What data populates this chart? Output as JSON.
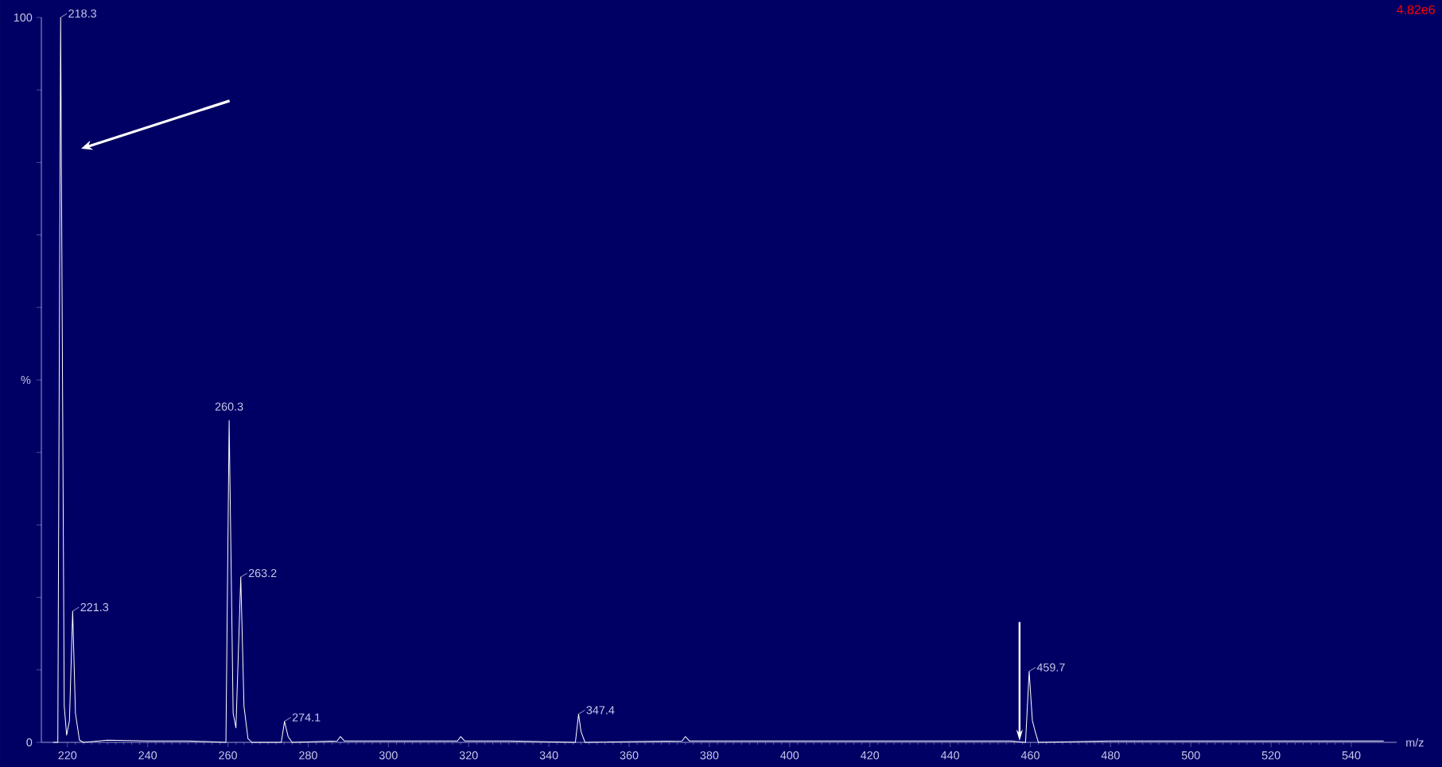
{
  "chart_data": {
    "type": "line",
    "ylabel": "%",
    "xlabel": "m/z",
    "xlim": [
      213.5,
      551.3
    ],
    "ylim": [
      0,
      100
    ],
    "xticks": [
      220,
      240,
      260,
      280,
      300,
      320,
      340,
      360,
      380,
      400,
      420,
      440,
      460,
      480,
      500,
      520,
      540
    ],
    "yticks": [
      0,
      {
        "value": 10,
        "label": null
      },
      {
        "value": 20,
        "label": null
      },
      {
        "value": 30,
        "label": null
      },
      {
        "value": 40,
        "label": null
      },
      {
        "value": 50,
        "label": null
      },
      {
        "value": 60,
        "label": null
      },
      {
        "value": 70,
        "label": null
      },
      {
        "value": 80,
        "label": null
      },
      {
        "value": 90,
        "label": null
      },
      100
    ],
    "series": [
      {
        "color": "#ffffff",
        "x": [
          216.5,
          217.6,
          218.3,
          219.2,
          219.8,
          220.5,
          221.3,
          222.0,
          223,
          224,
          230,
          240,
          250,
          259.5,
          260.3,
          261.3,
          262.0,
          263.2,
          264.0,
          265,
          266,
          273.3,
          274.1,
          275,
          276,
          287.2,
          288,
          289,
          300,
          317.2,
          318,
          319,
          330,
          346.6,
          347.4,
          348,
          349,
          373.2,
          374,
          375,
          400,
          430,
          455,
          458.8,
          459.7,
          460.5,
          461.2,
          462,
          480,
          500,
          520,
          548
        ],
        "values": [
          0,
          0,
          100,
          5,
          1,
          3,
          18.1,
          4,
          0.3,
          0,
          0.3,
          0.2,
          0.2,
          0,
          44.4,
          4,
          2,
          22.8,
          5,
          0.5,
          0,
          0,
          2.9,
          0.8,
          0,
          0.2,
          0.8,
          0.2,
          0.2,
          0.2,
          0.8,
          0.2,
          0.2,
          0,
          3.9,
          1.5,
          0,
          0.2,
          0.8,
          0.2,
          0.2,
          0.2,
          0.2,
          0,
          9.8,
          3,
          1.5,
          0,
          0.2,
          0.2,
          0.2,
          0.2
        ]
      }
    ],
    "annotations": [
      {
        "text": "218.3",
        "x": 218.3,
        "y": 100
      },
      {
        "text": "221.3",
        "x": 221.3,
        "y": 18.1
      },
      {
        "text": "260.3",
        "x": 260.3,
        "y": 44.4
      },
      {
        "text": "263.2",
        "x": 263.2,
        "y": 22.8
      },
      {
        "text": "274.1",
        "x": 274.1,
        "y": 2.9
      },
      {
        "text": "347.4",
        "x": 347.4,
        "y": 3.9
      },
      {
        "text": "459.7",
        "x": 459.7,
        "y": 9.8
      },
      "4.82e6"
    ],
    "grid": false,
    "marker": "none",
    "line_style": "solid"
  }
}
